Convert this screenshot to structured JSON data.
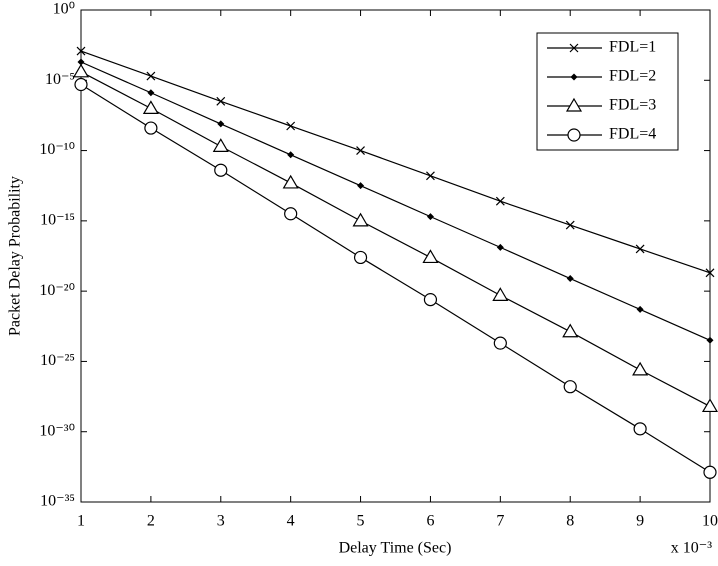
{
  "chart_data": {
    "type": "line",
    "x_label": "Delay Time (Sec)",
    "y_label": "Packet Delay Probability",
    "x_multiplier": "x 10⁻³",
    "x": [
      1,
      2,
      3,
      4,
      5,
      6,
      7,
      8,
      9,
      10
    ],
    "xlim": [
      1,
      10
    ],
    "xticks": [
      1,
      2,
      3,
      4,
      5,
      6,
      7,
      8,
      9,
      10
    ],
    "ylim": [
      1e-35,
      1
    ],
    "y_scale": "log",
    "yticks": [
      {
        "value": 1,
        "label": "10⁰"
      },
      {
        "value": 1e-05,
        "label": "10⁻⁵"
      },
      {
        "value": 1e-10,
        "label": "10⁻¹⁰"
      },
      {
        "value": 1e-15,
        "label": "10⁻¹⁵"
      },
      {
        "value": 1e-20,
        "label": "10⁻²⁰"
      },
      {
        "value": 1e-25,
        "label": "10⁻²⁵"
      },
      {
        "value": 1e-30,
        "label": "10⁻³⁰"
      },
      {
        "value": 1e-35,
        "label": "10⁻³⁵"
      }
    ],
    "legend": "upper right",
    "series": [
      {
        "name": "FDL=1",
        "color": "#000000",
        "marker": "x",
        "values": [
          0.0012,
          2e-05,
          3.2e-07,
          5.6e-09,
          1e-10,
          1.6e-12,
          2.5e-14,
          5e-16,
          1e-17,
          2e-19
        ]
      },
      {
        "name": "FDL=2",
        "color": "#000000",
        "marker": "diamond",
        "values": [
          0.0002,
          1.3e-06,
          7.9e-09,
          5e-11,
          3.2e-13,
          2e-15,
          1.3e-17,
          7.9e-20,
          5e-22,
          3.2e-24
        ]
      },
      {
        "name": "FDL=3",
        "color": "#000000",
        "marker": "triangle",
        "values": [
          4e-05,
          1e-07,
          2e-10,
          5e-13,
          1e-15,
          2.5e-18,
          5e-21,
          1.3e-23,
          2.5e-26,
          6.3e-29
        ]
      },
      {
        "name": "FDL=4",
        "color": "#000000",
        "marker": "circle",
        "values": [
          5e-06,
          4e-09,
          4e-12,
          3.2e-15,
          2.5e-18,
          2.5e-21,
          2e-24,
          1.6e-27,
          1.6e-30,
          1.3e-33
        ]
      }
    ]
  }
}
